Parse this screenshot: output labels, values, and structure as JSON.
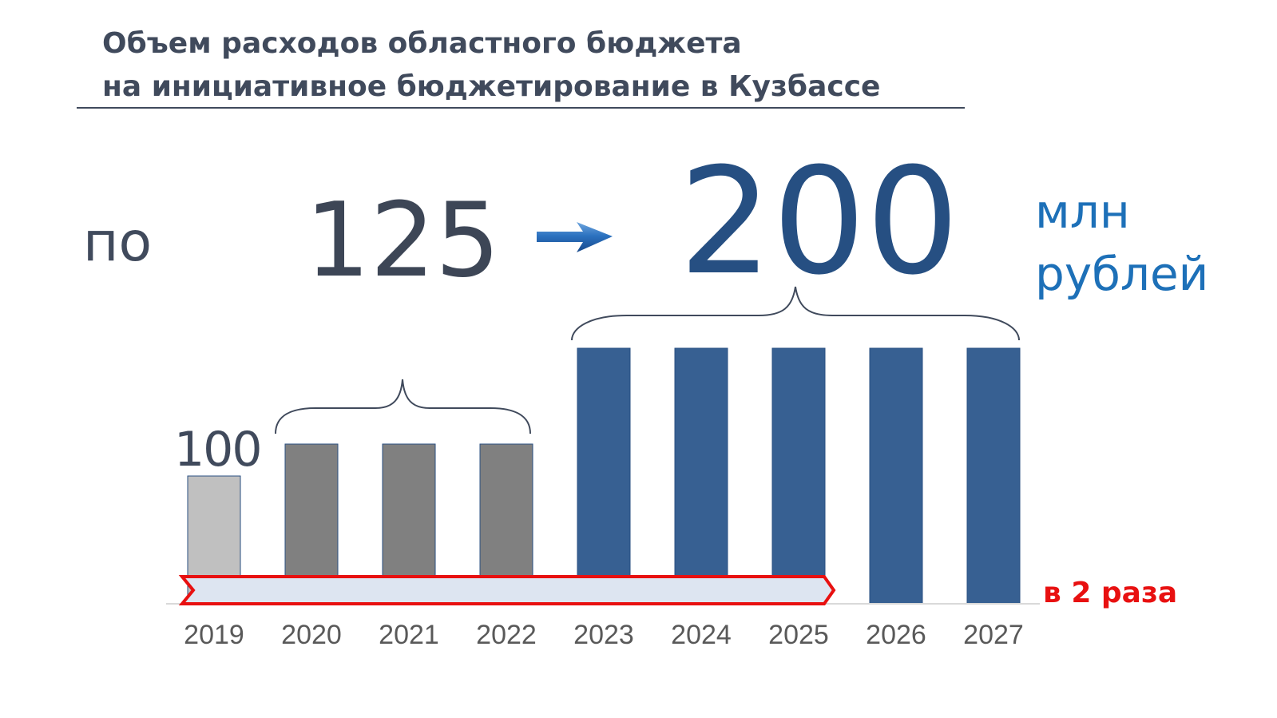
{
  "title": {
    "line1": "Объем расходов областного бюджета",
    "line2": "на инициативное бюджетирование в Кузбассе"
  },
  "headline": {
    "prefix": "по",
    "from_value": "125",
    "to_value": "200",
    "unit_line1": "млн",
    "unit_line2": "рублей",
    "value_2019_label": "100"
  },
  "growth_label": "в 2 раза",
  "colors": {
    "bar_2019": "#c0c0c0",
    "bar_125": "#808080",
    "bar_200": "#376092",
    "arrow_band_fill": "#dde5f1",
    "arrow_band_stroke": "#e81010",
    "text_dark": "#404a5c",
    "accent_blue": "#1d70b8"
  },
  "chart_data": {
    "type": "bar",
    "categories": [
      "2019",
      "2020",
      "2021",
      "2022",
      "2023",
      "2024",
      "2025",
      "2026",
      "2027"
    ],
    "values": [
      100,
      125,
      125,
      125,
      200,
      200,
      200,
      200,
      200
    ],
    "ylim": [
      0,
      210
    ],
    "grid": false,
    "legend": "none",
    "annotations": [
      {
        "text": "100",
        "target": "2019"
      },
      {
        "text": "125",
        "span": [
          "2020",
          "2022"
        ]
      },
      {
        "text": "200",
        "span": [
          "2023",
          "2027"
        ]
      },
      {
        "text": "в 2 раза",
        "span": [
          "2019",
          "2025"
        ]
      }
    ]
  }
}
